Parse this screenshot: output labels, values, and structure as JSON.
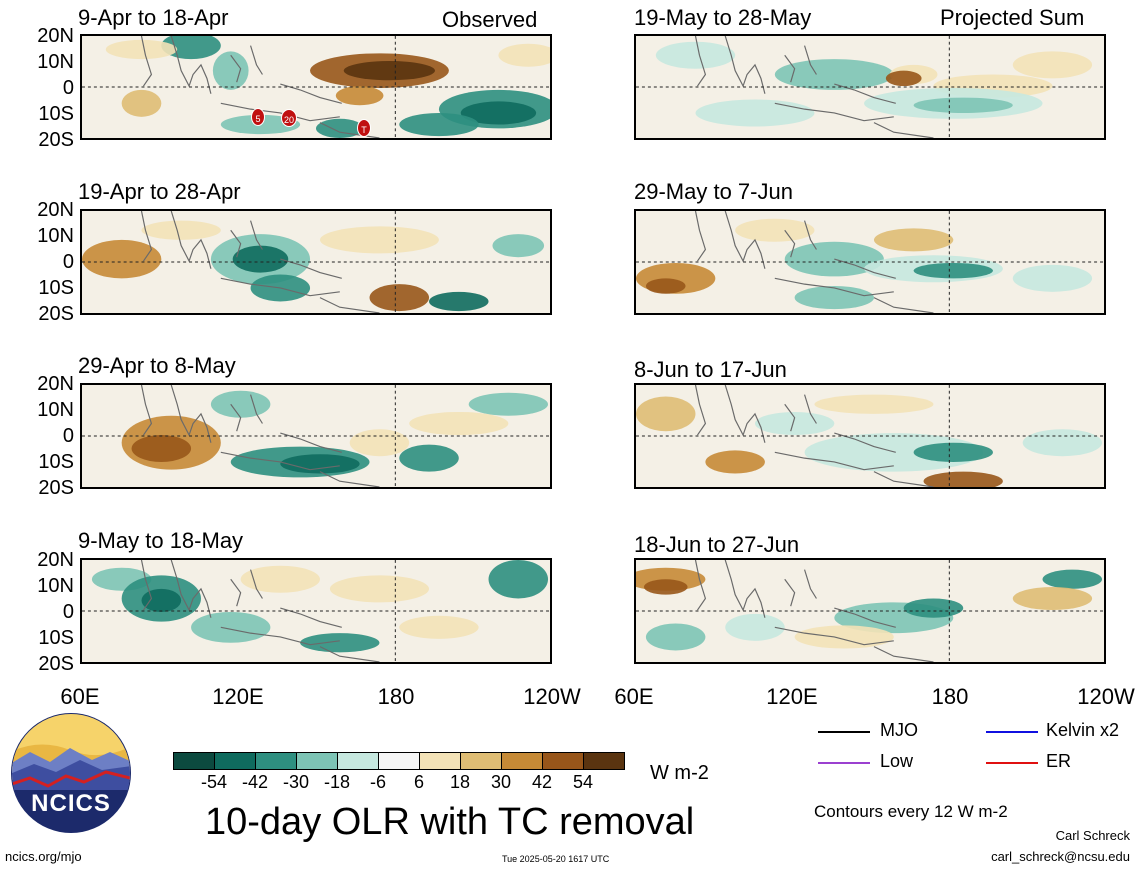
{
  "left_header_right": "Observed",
  "right_header_right": "Projected Sum",
  "panels_left": [
    {
      "title": "9-Apr to 18-Apr"
    },
    {
      "title": "19-Apr to 28-Apr"
    },
    {
      "title": "29-Apr to 8-May"
    },
    {
      "title": "9-May to 18-May"
    }
  ],
  "panels_right": [
    {
      "title": "19-May to 28-May"
    },
    {
      "title": "29-May to 7-Jun"
    },
    {
      "title": "8-Jun to 17-Jun"
    },
    {
      "title": "18-Jun to 27-Jun"
    }
  ],
  "y_ticks": [
    "20N",
    "10N",
    "0",
    "10S",
    "20S"
  ],
  "x_ticks": [
    "60E",
    "120E",
    "180",
    "120W"
  ],
  "tc_markers": [
    "5",
    "20",
    "T"
  ],
  "colorbar": {
    "labels": [
      "-54",
      "-42",
      "-30",
      "-18",
      "-6",
      "6",
      "18",
      "30",
      "42",
      "54"
    ],
    "colors": [
      "#0c4a3f",
      "#0f6b5e",
      "#2e8f80",
      "#7dc4b5",
      "#c6e8df",
      "#f6f6f6",
      "#f3e2b7",
      "#dfbd74",
      "#c68a36",
      "#98561a",
      "#5a3410"
    ],
    "units": "W m-2"
  },
  "title": "10-day OLR with TC removal",
  "legend": [
    {
      "label": "MJO",
      "color": "#000000"
    },
    {
      "label": "Kelvin x2",
      "color": "#1010e0"
    },
    {
      "label": "Low",
      "color": "#9b40d0"
    },
    {
      "label": "ER",
      "color": "#e01010"
    }
  ],
  "contour_note": "Contours every 12 W m-2",
  "author": "Carl Schreck",
  "email": "carl_schreck@ncsu.edu",
  "logo_text": "NCICS",
  "website": "ncics.org/mjo",
  "timestamp": "Tue 2025-05-20 1617 UTC"
}
